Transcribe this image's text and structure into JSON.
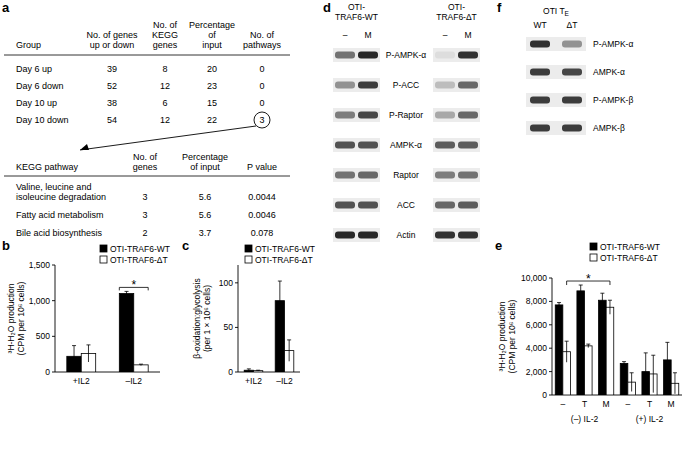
{
  "panel_labels": [
    "a",
    "b",
    "c",
    "d",
    "e",
    "f"
  ],
  "table": {
    "header": [
      [
        "Group"
      ],
      [
        "No. of genes",
        "up or down"
      ],
      [
        "No. of",
        "KEGG",
        "genes"
      ],
      [
        "Percentage",
        "of",
        "input"
      ],
      [
        "No. of",
        "pathways"
      ]
    ],
    "rows": [
      [
        "Day 6 up",
        39,
        8,
        20,
        0
      ],
      [
        "Day 6 down",
        52,
        12,
        23,
        0
      ],
      [
        "Day 10 up",
        38,
        6,
        15,
        0
      ],
      [
        "Day 10 down",
        54,
        12,
        22,
        3
      ]
    ],
    "circled": {
      "row": 3,
      "col": 4
    },
    "sub_header": [
      [
        "KEGG pathway"
      ],
      [
        "No. of",
        "genes"
      ],
      [
        "Percentage",
        "of input"
      ],
      [
        "P value"
      ]
    ],
    "sub_rows": [
      [
        [
          "Valine, leucine and",
          "isoleucine degradation"
        ],
        3,
        5.6,
        0.0044
      ],
      [
        [
          "Fatty acid metabolism"
        ],
        3,
        5.6,
        0.0046
      ],
      [
        [
          "Bile acid biosynthesis"
        ],
        2,
        3.7,
        0.078
      ]
    ]
  },
  "chart_data": [
    {
      "type": "bar",
      "y_label": [
        "³H-H₂O production",
        "(CPM per 10⁶ cells)"
      ],
      "categories": [
        "+IL2",
        "–IL2"
      ],
      "series": [
        {
          "name": "OTI-TRAF6-WT",
          "color": "#000000",
          "values": [
            220,
            1100
          ],
          "errors": [
            150,
            30
          ]
        },
        {
          "name": "OTI-TRAF6-ΔT",
          "color": "#ffffff",
          "values": [
            260,
            100
          ],
          "errors": [
            120,
            10
          ]
        }
      ],
      "ylim": [
        0,
        1500
      ],
      "yticks": [
        0,
        500,
        {
          "value": 1000,
          "label": "1,000"
        },
        {
          "value": 1500,
          "label": "1,500"
        }
      ],
      "legend": "top-right",
      "annotations": [
        {
          "text": "*",
          "categories": [
            1,
            1
          ]
        }
      ]
    },
    {
      "type": "bar",
      "y_label": [
        "β-oxidation:glycolysis",
        "(per 1 × 10⁶ cells)"
      ],
      "categories": [
        "+IL2",
        "–IL2"
      ],
      "series": [
        {
          "name": "OTI-TRAF6-WT",
          "color": "#000000",
          "values": [
            2,
            80
          ],
          "errors": [
            1.5,
            22
          ]
        },
        {
          "name": "OTI-TRAF6-ΔT",
          "color": "#ffffff",
          "values": [
            1.5,
            24
          ],
          "errors": [
            0.5,
            12
          ]
        }
      ],
      "ylim": [
        0,
        120
      ],
      "yticks": [
        0,
        50,
        100
      ],
      "legend": "top-right"
    },
    {
      "type": "bar",
      "y_label": [
        "³H-H₂O production",
        "(CPM per 10⁶ cells)"
      ],
      "categories": [
        "–",
        "T",
        "M",
        "–",
        "T",
        "M"
      ],
      "groups": [
        "(–) IL-2",
        "(+) IL-2"
      ],
      "series": [
        {
          "name": "OTI-TRAF6-WT",
          "color": "#000000",
          "values": [
            7700,
            8900,
            8100,
            2700,
            2000,
            3000
          ],
          "errors": [
            200,
            500,
            600,
            150,
            1600,
            1500
          ]
        },
        {
          "name": "OTI-TRAF6-ΔT",
          "color": "#ffffff",
          "values": [
            3700,
            4200,
            7500,
            1100,
            1800,
            1000
          ],
          "errors": [
            900,
            150,
            600,
            800,
            1600,
            900
          ]
        }
      ],
      "ylim": [
        0,
        10000
      ],
      "yticks": [
        0,
        {
          "value": 2000,
          "label": "2,000"
        },
        {
          "value": 4000,
          "label": "4,000"
        },
        {
          "value": 6000,
          "label": "6,000"
        },
        {
          "value": 8000,
          "label": "8,000"
        },
        {
          "value": 10000,
          "label": "10,000"
        }
      ],
      "legend": "top-right",
      "annotations": [
        {
          "text": "*",
          "categories": [
            0,
            2
          ]
        }
      ]
    }
  ],
  "blots": [
    {
      "type": "blot",
      "column_groups": [
        {
          "label": [
            "OTI-",
            "TRAF6-WT"
          ],
          "lanes": [
            "–",
            "M"
          ]
        },
        {
          "label": [
            "OTI-",
            "TRAF6-ΔT"
          ],
          "lanes": [
            "–",
            "M"
          ]
        }
      ],
      "rows": [
        {
          "label": "P-AMPK-α",
          "bands": [
            0.55,
            0.9,
            0.05,
            0.85
          ]
        },
        {
          "label": "P-ACC",
          "bands": [
            0.4,
            0.8,
            0.2,
            0.6
          ]
        },
        {
          "label": "P-Raptor",
          "bands": [
            0.5,
            0.75,
            0.3,
            0.6
          ]
        },
        {
          "label": "AMPK-α",
          "bands": [
            0.7,
            0.7,
            0.65,
            0.65
          ]
        },
        {
          "label": "Raptor",
          "bands": [
            0.55,
            0.6,
            0.5,
            0.55
          ]
        },
        {
          "label": "ACC",
          "bands": [
            0.7,
            0.7,
            0.6,
            0.65
          ]
        },
        {
          "label": "Actin",
          "bands": [
            0.9,
            0.9,
            0.85,
            0.85
          ]
        }
      ]
    },
    {
      "type": "blot",
      "column_groups": [
        {
          "label": [
            "OTI T"
          ],
          "label_sub": "E",
          "lanes": [
            "WT",
            "ΔT"
          ]
        }
      ],
      "rows": [
        {
          "label": "P-AMPK-α",
          "bands": [
            0.85,
            0.4
          ]
        },
        {
          "label": "AMPK-α",
          "bands": [
            0.8,
            0.75
          ]
        },
        {
          "label": "P-AMPK-β",
          "bands": [
            0.8,
            0.8
          ]
        },
        {
          "label": "AMPK-β",
          "bands": [
            0.8,
            0.8
          ]
        }
      ]
    }
  ]
}
